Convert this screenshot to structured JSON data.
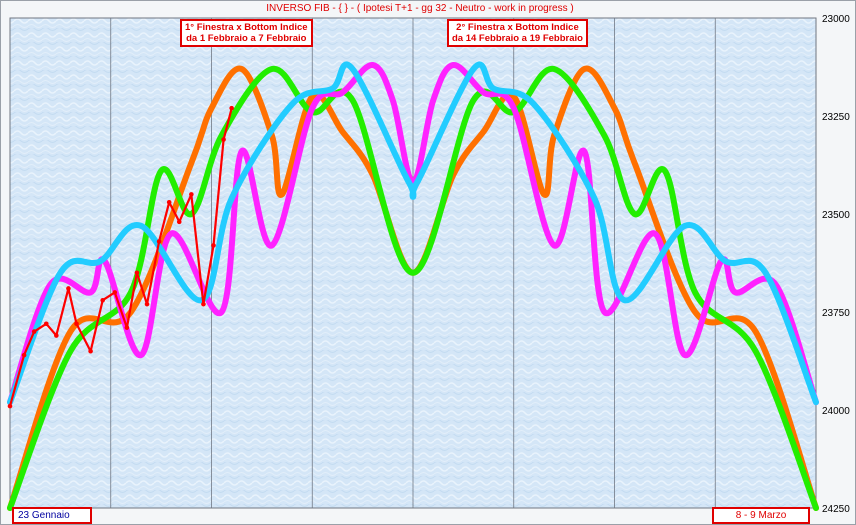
{
  "chart_data": {
    "type": "line",
    "title": "INVERSO FIB  -  { } - ( Ipotesi T+1  - gg 32  - Neutro - work in progress )",
    "y_axis": {
      "ticks": [
        23000,
        23250,
        23500,
        23750,
        24000,
        24250
      ],
      "range": [
        24250,
        23000
      ],
      "inverted": true,
      "position": "right"
    },
    "x_range": [
      0,
      40
    ],
    "grid": {
      "vertical": true,
      "horizontal": false
    },
    "annotations": [
      {
        "text_line1": "1° Finestra x Bottom Indice",
        "text_line2": "da 1 Febbraio a 7 Febbraio"
      },
      {
        "text_line1": "2° Finestra x Bottom Indice",
        "text_line2": "da 14 Febbraio a 19 Febbraio"
      }
    ],
    "date_start": "23  Gennaio",
    "date_end": "8 - 9   Marzo",
    "series": [
      {
        "color": "#ff7000",
        "points": [
          [
            0,
            24250
          ],
          [
            3,
            23800
          ],
          [
            6,
            23750
          ],
          [
            9,
            23370
          ],
          [
            10,
            23230
          ],
          [
            11.5,
            23130
          ],
          [
            13,
            23300
          ],
          [
            13.5,
            23450
          ],
          [
            15,
            23200
          ],
          [
            16.5,
            23290
          ],
          [
            18,
            23400
          ],
          [
            20,
            23650
          ],
          [
            22,
            23400
          ],
          [
            23.5,
            23290
          ],
          [
            25,
            23200
          ],
          [
            26.5,
            23450
          ],
          [
            27,
            23300
          ],
          [
            28.5,
            23130
          ],
          [
            30,
            23230
          ],
          [
            31,
            23370
          ],
          [
            34,
            23750
          ],
          [
            37,
            23800
          ],
          [
            40,
            24250
          ]
        ]
      },
      {
        "color": "#22ee00",
        "points": [
          [
            0,
            24250
          ],
          [
            3,
            23850
          ],
          [
            6,
            23700
          ],
          [
            7.5,
            23390
          ],
          [
            9,
            23500
          ],
          [
            10.5,
            23300
          ],
          [
            13,
            23130
          ],
          [
            15,
            23240
          ],
          [
            17,
            23210
          ],
          [
            20,
            23650
          ],
          [
            23,
            23210
          ],
          [
            25,
            23240
          ],
          [
            27,
            23130
          ],
          [
            29.5,
            23300
          ],
          [
            31,
            23500
          ],
          [
            32.5,
            23390
          ],
          [
            34,
            23700
          ],
          [
            37,
            23850
          ],
          [
            40,
            24250
          ]
        ]
      },
      {
        "color": "#ff22ff",
        "points": [
          [
            0,
            23980
          ],
          [
            2,
            23680
          ],
          [
            4,
            23700
          ],
          [
            4.7,
            23620
          ],
          [
            6.5,
            23860
          ],
          [
            8,
            23550
          ],
          [
            10.5,
            23750
          ],
          [
            11.5,
            23340
          ],
          [
            13,
            23580
          ],
          [
            15,
            23230
          ],
          [
            16.5,
            23190
          ],
          [
            18,
            23120
          ],
          [
            19,
            23210
          ],
          [
            20,
            23420
          ],
          [
            21,
            23210
          ],
          [
            22,
            23120
          ],
          [
            23.5,
            23190
          ],
          [
            25,
            23230
          ],
          [
            27,
            23580
          ],
          [
            28.5,
            23340
          ],
          [
            29.5,
            23750
          ],
          [
            32,
            23550
          ],
          [
            33.5,
            23860
          ],
          [
            35.3,
            23620
          ],
          [
            36,
            23700
          ],
          [
            38,
            23680
          ],
          [
            40,
            23980
          ]
        ]
      },
      {
        "color": "#22ccff",
        "points": [
          [
            0,
            23980
          ],
          [
            2.5,
            23650
          ],
          [
            4.5,
            23620
          ],
          [
            6.5,
            23530
          ],
          [
            9.5,
            23720
          ],
          [
            11,
            23460
          ],
          [
            14,
            23220
          ],
          [
            16,
            23180
          ],
          [
            17,
            23130
          ],
          [
            19.8,
            23420
          ],
          [
            20.2,
            23420
          ],
          [
            23,
            23130
          ],
          [
            24,
            23180
          ],
          [
            26,
            23220
          ],
          [
            29,
            23460
          ],
          [
            30.5,
            23720
          ],
          [
            33.5,
            23530
          ],
          [
            35.5,
            23620
          ],
          [
            37.5,
            23650
          ],
          [
            40,
            23980
          ]
        ]
      },
      {
        "color": "#ff0000",
        "points": [
          [
            0,
            23990
          ],
          [
            0.7,
            23860
          ],
          [
            1.2,
            23800
          ],
          [
            1.8,
            23780
          ],
          [
            2.3,
            23810
          ],
          [
            2.9,
            23690
          ],
          [
            3.3,
            23780
          ],
          [
            4,
            23850
          ],
          [
            4.6,
            23720
          ],
          [
            5.2,
            23700
          ],
          [
            5.8,
            23790
          ],
          [
            6.3,
            23650
          ],
          [
            6.8,
            23730
          ],
          [
            7.4,
            23570
          ],
          [
            7.9,
            23470
          ],
          [
            8.4,
            23520
          ],
          [
            9,
            23450
          ],
          [
            9.6,
            23730
          ],
          [
            10.1,
            23580
          ],
          [
            10.6,
            23310
          ],
          [
            11,
            23230
          ]
        ]
      }
    ]
  }
}
